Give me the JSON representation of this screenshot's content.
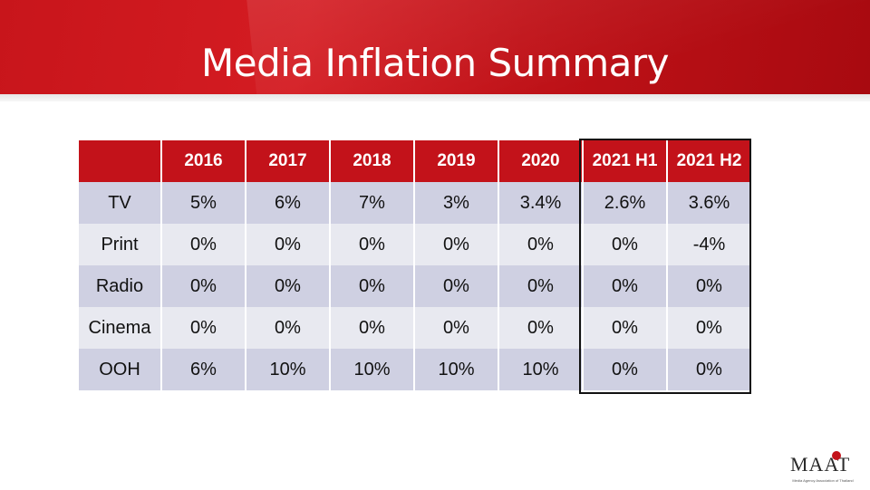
{
  "slide": {
    "title": "Media Inflation Summary"
  },
  "table": {
    "headers": [
      "",
      "2016",
      "2017",
      "2018",
      "2019",
      "2020",
      "2021 H1",
      "2021 H2"
    ],
    "rows": [
      {
        "label": "TV",
        "values": [
          "5%",
          "6%",
          "7%",
          "3%",
          "3.4%",
          "2.6%",
          "3.6%"
        ]
      },
      {
        "label": "Print",
        "values": [
          "0%",
          "0%",
          "0%",
          "0%",
          "0%",
          "0%",
          "-4%"
        ]
      },
      {
        "label": "Radio",
        "values": [
          "0%",
          "0%",
          "0%",
          "0%",
          "0%",
          "0%",
          "0%"
        ]
      },
      {
        "label": "Cinema",
        "values": [
          "0%",
          "0%",
          "0%",
          "0%",
          "0%",
          "0%",
          "0%"
        ]
      },
      {
        "label": "OOH",
        "values": [
          "6%",
          "10%",
          "10%",
          "10%",
          "10%",
          "0%",
          "0%"
        ]
      }
    ]
  },
  "logo": {
    "mark": "MAAT",
    "tagline": "Media Agency Association of Thailand"
  },
  "colors": {
    "banner": "#c8151b",
    "header": "#c3121a",
    "row_odd": "#cfd0e2",
    "row_even": "#e8e9f0"
  }
}
